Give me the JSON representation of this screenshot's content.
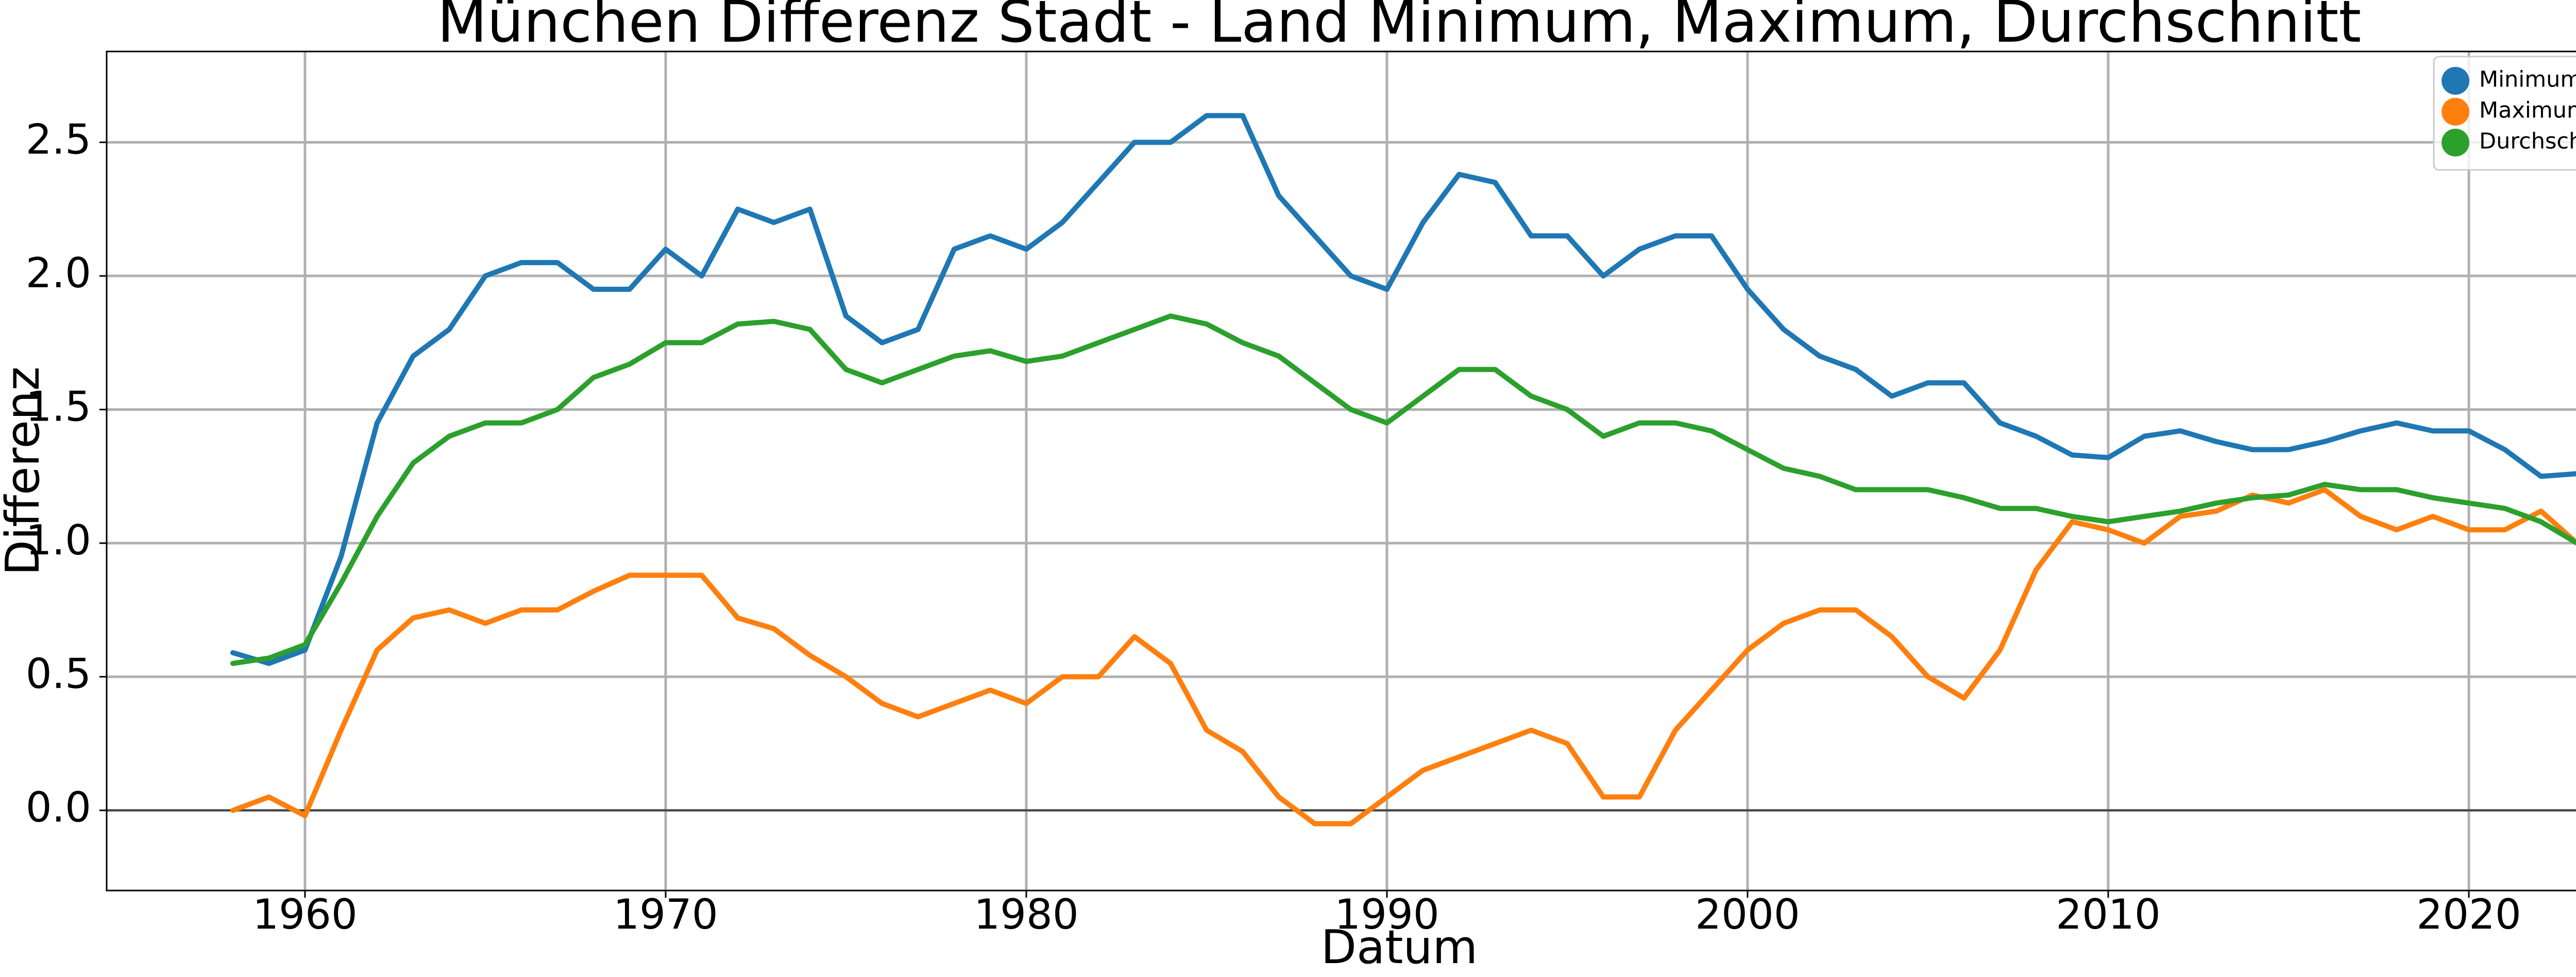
{
  "chart_data": {
    "type": "line",
    "title": "München Differenz Stadt - Land Minimum, Maximum, Durchschnitt",
    "xlabel": "Datum",
    "ylabel": "Differenz",
    "x": [
      1958,
      1959,
      1960,
      1961,
      1962,
      1963,
      1964,
      1965,
      1966,
      1967,
      1968,
      1969,
      1970,
      1971,
      1972,
      1973,
      1974,
      1975,
      1976,
      1977,
      1978,
      1979,
      1980,
      1981,
      1982,
      1983,
      1984,
      1985,
      1986,
      1987,
      1988,
      1989,
      1990,
      1991,
      1992,
      1993,
      1994,
      1995,
      1996,
      1997,
      1998,
      1999,
      2000,
      2001,
      2002,
      2003,
      2004,
      2005,
      2006,
      2007,
      2008,
      2009,
      2010,
      2011,
      2012,
      2013,
      2014,
      2015,
      2016,
      2017,
      2018,
      2019,
      2020,
      2021,
      2022,
      2023
    ],
    "series": [
      {
        "name": "Minimum",
        "color": "#1f77b4",
        "values": [
          0.59,
          0.55,
          0.6,
          0.95,
          1.45,
          1.7,
          1.8,
          2.0,
          2.05,
          2.05,
          1.95,
          1.95,
          2.1,
          2.0,
          2.25,
          2.2,
          2.25,
          1.85,
          1.75,
          1.8,
          2.1,
          2.15,
          2.1,
          2.2,
          2.35,
          2.5,
          2.5,
          2.6,
          2.6,
          2.3,
          2.15,
          2.0,
          1.95,
          2.2,
          2.38,
          2.35,
          2.15,
          2.15,
          2.0,
          2.1,
          2.15,
          2.15,
          1.95,
          1.8,
          1.7,
          1.65,
          1.55,
          1.6,
          1.6,
          1.45,
          1.4,
          1.33,
          1.32,
          1.4,
          1.42,
          1.38,
          1.35,
          1.35,
          1.38,
          1.42,
          1.45,
          1.42,
          1.42,
          1.35,
          1.25,
          1.26
        ]
      },
      {
        "name": "Maximum",
        "color": "#ff7f0e",
        "values": [
          0.0,
          0.05,
          -0.02,
          0.3,
          0.6,
          0.72,
          0.75,
          0.7,
          0.75,
          0.75,
          0.82,
          0.88,
          0.88,
          0.88,
          0.72,
          0.68,
          0.58,
          0.5,
          0.4,
          0.35,
          0.4,
          0.45,
          0.4,
          0.5,
          0.5,
          0.65,
          0.55,
          0.3,
          0.22,
          0.05,
          -0.05,
          -0.05,
          0.05,
          0.15,
          0.2,
          0.25,
          0.3,
          0.25,
          0.05,
          0.05,
          0.3,
          0.45,
          0.6,
          0.7,
          0.75,
          0.75,
          0.65,
          0.5,
          0.42,
          0.6,
          0.9,
          1.08,
          1.05,
          1.0,
          1.1,
          1.12,
          1.18,
          1.15,
          1.2,
          1.1,
          1.05,
          1.1,
          1.05,
          1.05,
          1.12,
          1.0
        ]
      },
      {
        "name": "Durchschnitt",
        "color": "#2ca02c",
        "values": [
          0.55,
          0.57,
          0.62,
          0.85,
          1.1,
          1.3,
          1.4,
          1.45,
          1.45,
          1.5,
          1.62,
          1.67,
          1.75,
          1.75,
          1.82,
          1.83,
          1.8,
          1.65,
          1.6,
          1.65,
          1.7,
          1.72,
          1.68,
          1.7,
          1.75,
          1.8,
          1.85,
          1.82,
          1.75,
          1.7,
          1.6,
          1.5,
          1.45,
          1.55,
          1.65,
          1.65,
          1.55,
          1.5,
          1.4,
          1.45,
          1.45,
          1.42,
          1.35,
          1.28,
          1.25,
          1.2,
          1.2,
          1.2,
          1.17,
          1.13,
          1.13,
          1.1,
          1.08,
          1.1,
          1.12,
          1.15,
          1.17,
          1.18,
          1.22,
          1.2,
          1.2,
          1.17,
          1.15,
          1.13,
          1.08,
          1.0
        ]
      }
    ],
    "xlim": [
      1954.5,
      2026.2
    ],
    "ylim": [
      -0.3,
      2.84
    ],
    "xticks": [
      1960,
      1970,
      1980,
      1990,
      2000,
      2010,
      2020
    ],
    "yticks": [
      {
        "value": 0,
        "label": "0.0"
      },
      0.5,
      {
        "value": 1,
        "label": "1.0"
      },
      1.5,
      {
        "value": 2,
        "label": "2.0"
      },
      2.5
    ],
    "grid": true,
    "zero_line": true,
    "legend": "upper right"
  }
}
